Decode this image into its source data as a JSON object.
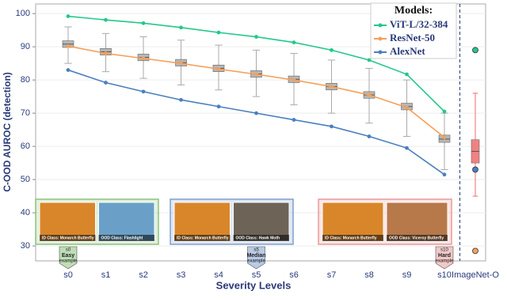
{
  "chart_data": {
    "type": "line",
    "y_label": "C-OOD AUROC (detection)",
    "x_label": "Severity Levels",
    "legend_title": "Models:",
    "legend": "upper right",
    "grid": true,
    "divider": "dashed",
    "categories": [
      "s0",
      "s1",
      "s2",
      "s3",
      "s4",
      "s5",
      "s6",
      "s7",
      "s8",
      "s9",
      "s10",
      "ImageNet-O"
    ],
    "ylim": [
      25.5,
      102.9
    ],
    "yticks": [
      30,
      40,
      50,
      60,
      70,
      80,
      90,
      100
    ],
    "series": [
      {
        "name": "ViT-L/32-384",
        "color": "#22c98a",
        "values": [
          99.2,
          98.1,
          97.1,
          95.8,
          94.3,
          93.0,
          91.3,
          89.0,
          86.0,
          81.7,
          70.5,
          89.0
        ]
      },
      {
        "name": "ResNet-50",
        "color": "#f5a05a",
        "values": [
          90.2,
          88.0,
          86.5,
          85.0,
          83.3,
          81.7,
          80.0,
          78.0,
          75.5,
          71.7,
          62.7,
          28.5
        ]
      },
      {
        "name": "AlexNet",
        "color": "#4a7fbf",
        "values": [
          83.0,
          79.2,
          76.5,
          74.0,
          72.0,
          70.0,
          68.0,
          66.0,
          63.0,
          59.5,
          51.5,
          53.0
        ]
      }
    ],
    "boxes": [
      {
        "whislo": 85.0,
        "q1": 89.8,
        "median": 90.8,
        "q3": 91.8,
        "whishi": 96.0,
        "color": "#aaaaaa"
      },
      {
        "whislo": 82.5,
        "q1": 87.5,
        "median": 88.5,
        "q3": 89.5,
        "whishi": 94.0,
        "color": "#aaaaaa"
      },
      {
        "whislo": 80.5,
        "q1": 85.8,
        "median": 86.8,
        "q3": 87.8,
        "whishi": 93.0,
        "color": "#aaaaaa"
      },
      {
        "whislo": 78.5,
        "q1": 84.2,
        "median": 85.2,
        "q3": 86.2,
        "whishi": 92.0,
        "color": "#aaaaaa"
      },
      {
        "whislo": 77.0,
        "q1": 82.5,
        "median": 83.5,
        "q3": 84.5,
        "whishi": 90.5,
        "color": "#aaaaaa"
      },
      {
        "whislo": 75.0,
        "q1": 80.8,
        "median": 81.8,
        "q3": 82.8,
        "whishi": 89.0,
        "color": "#aaaaaa"
      },
      {
        "whislo": 72.5,
        "q1": 79.2,
        "median": 80.2,
        "q3": 81.2,
        "whishi": 88.0,
        "color": "#aaaaaa"
      },
      {
        "whislo": 70.0,
        "q1": 77.0,
        "median": 78.0,
        "q3": 79.0,
        "whishi": 86.0,
        "color": "#aaaaaa"
      },
      {
        "whislo": 67.0,
        "q1": 74.5,
        "median": 75.5,
        "q3": 76.5,
        "whishi": 83.5,
        "color": "#aaaaaa"
      },
      {
        "whislo": 63.0,
        "q1": 71.0,
        "median": 72.0,
        "q3": 73.0,
        "whishi": 80.0,
        "color": "#aaaaaa"
      },
      {
        "whislo": 53.0,
        "q1": 61.2,
        "median": 62.2,
        "q3": 63.4,
        "whishi": 70.0,
        "color": "#aaaaaa"
      },
      {
        "whislo": 45.0,
        "q1": 55.0,
        "median": 58.5,
        "q3": 62.0,
        "whishi": 76.0,
        "color": "#ef6b6b"
      }
    ],
    "examples": [
      {
        "level": "s0",
        "difficulty": "Easy",
        "note": "example",
        "id_label": "ID Class: Monarch Butterfly",
        "ood_label": "OOD Class: Flashlight",
        "color": "#8bc37a"
      },
      {
        "level": "s5",
        "difficulty": "Median",
        "note": "example",
        "id_label": "ID Class: Monarch Butterfly",
        "ood_label": "OOD Class: Hawk Moth",
        "color": "#7f9fcf"
      },
      {
        "level": "s10",
        "difficulty": "Hard",
        "note": "example",
        "id_label": "ID Class: Monarch Butterfly",
        "ood_label": "OOD Class: Viceroy Butterfly",
        "color": "#e79a9a"
      }
    ]
  }
}
